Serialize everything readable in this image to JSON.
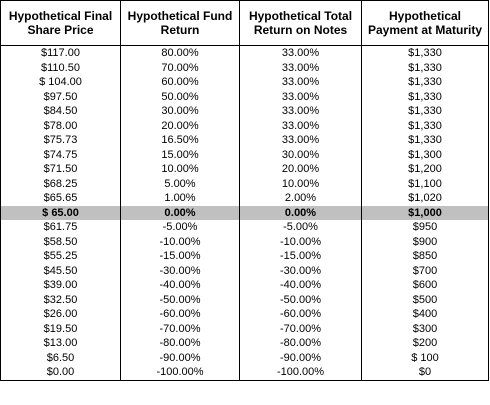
{
  "table": {
    "headers": [
      "Hypothetical Final Share Price",
      "Hypothetical Fund Return",
      "Hypothetical Total Return on Notes",
      "Hypothetical Payment at Maturity"
    ],
    "rows": [
      [
        "$117.00",
        "80.00%",
        "33.00%",
        "$1,330"
      ],
      [
        "$110.50",
        "70.00%",
        "33.00%",
        "$1,330"
      ],
      [
        "$ 104.00",
        "60.00%",
        "33.00%",
        "$1,330"
      ],
      [
        "$97.50",
        "50.00%",
        "33.00%",
        "$1,330"
      ],
      [
        "$84.50",
        "30.00%",
        "33.00%",
        "$1,330"
      ],
      [
        "$78.00",
        "20.00%",
        "33.00%",
        "$1,330"
      ],
      [
        "$75.73",
        "16.50%",
        "33.00%",
        "$1,330"
      ],
      [
        "$74.75",
        "15.00%",
        "30.00%",
        "$1,300"
      ],
      [
        "$71.50",
        "10.00%",
        "20.00%",
        "$1,200"
      ],
      [
        "$68.25",
        "5.00%",
        "10.00%",
        "$1,100"
      ],
      [
        "$65.65",
        "1.00%",
        "2.00%",
        "$1,020"
      ],
      [
        "$ 65.00",
        "0.00%",
        "0.00%",
        "$1,000"
      ],
      [
        "$61.75",
        "-5.00%",
        "-5.00%",
        "$950"
      ],
      [
        "$58.50",
        "-10.00%",
        "-10.00%",
        "$900"
      ],
      [
        "$55.25",
        "-15.00%",
        "-15.00%",
        "$850"
      ],
      [
        "$45.50",
        "-30.00%",
        "-30.00%",
        "$700"
      ],
      [
        "$39.00",
        "-40.00%",
        "-40.00%",
        "$600"
      ],
      [
        "$32.50",
        "-50.00%",
        "-50.00%",
        "$500"
      ],
      [
        "$26.00",
        "-60.00%",
        "-60.00%",
        "$400"
      ],
      [
        "$19.50",
        "-70.00%",
        "-70.00%",
        "$300"
      ],
      [
        "$13.00",
        "-80.00%",
        "-80.00%",
        "$200"
      ],
      [
        "$6.50",
        "-90.00%",
        "-90.00%",
        "$ 100"
      ],
      [
        "$0.00",
        "-100.00%",
        "-100.00%",
        "$0"
      ]
    ]
  }
}
